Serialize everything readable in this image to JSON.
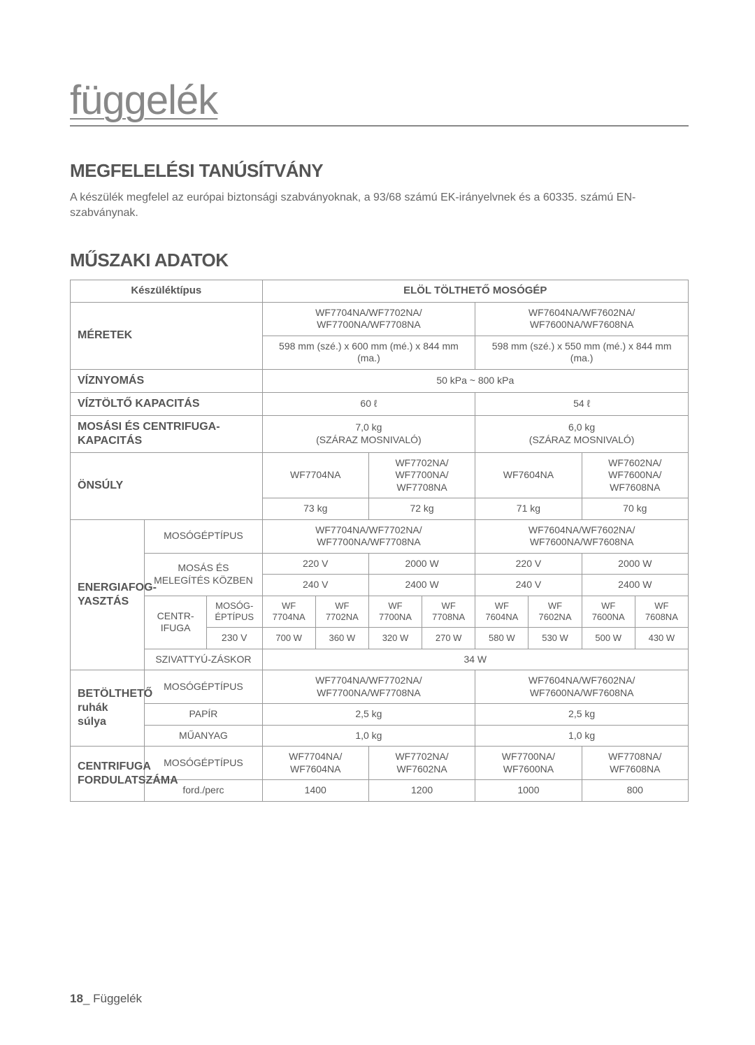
{
  "header": "függelék",
  "conformance": {
    "title": "MEGFELELÉSI TANÚSÍTVÁNY",
    "text": "A készülék megfelel az európai biztonsági szabványoknak, a 93/68 számú EK-irányelvnek és a 60335. számú EN-szabványnak."
  },
  "tech": {
    "title": "MŰSZAKI ADATOK"
  },
  "table": {
    "device_type_label": "Készüléktípus",
    "front_loader": "ELÖL TÖLTHETŐ MOSÓGÉP",
    "dims_label": "MÉRETEK",
    "models_big_left": "WF7704NA/WF7702NA/\nWF7700NA/WF7708NA",
    "models_big_right": "WF7604NA/WF7602NA/\nWF7600NA/WF7608NA",
    "dims_left": "598 mm (szé.) x 600 mm (mé.) x 844 mm (ma.)",
    "dims_right": "598 mm (szé.) x 550 mm (mé.) x 844 mm (ma.)",
    "water_pressure_label": "VÍZNYOMÁS",
    "water_pressure_val": "50 kPa ~ 800 kPa",
    "water_fill_label": "VÍZTÖLTŐ KAPACITÁS",
    "water_fill_left": "60 ℓ",
    "water_fill_right": "54 ℓ",
    "wash_spin_cap_label": "MOSÁSI ÉS CENTRIFUGA-KAPACITÁS",
    "wash_spin_cap_left": "7,0 kg\n(SZÁRAZ MOSNIVALÓ)",
    "wash_spin_cap_right": "6,0 kg\n(SZÁRAZ MOSNIVALÓ)",
    "self_weight_label": "ÖNSÚLY",
    "sw_m1": "WF7704NA",
    "sw_m2": "WF7702NA/\nWF7700NA/\nWF7708NA",
    "sw_m3": "WF7604NA",
    "sw_m4": "WF7602NA/\nWF7600NA/\nWF7608NA",
    "sw_v1": "73 kg",
    "sw_v2": "72 kg",
    "sw_v3": "71 kg",
    "sw_v4": "70 kg",
    "energy_label": "ENERGIAFOG-YASZTÁS",
    "moso_type_label": "MOSÓGÉPTÍPUS",
    "moso_type_left": "WF7704NA/WF7702NA/\nWF7700NA/WF7708NA",
    "moso_type_right": "WF7604NA/WF7602NA/\nWF7600NA/WF7608NA",
    "wash_heat_label": "MOSÁS ÉS MELEGÍTÉS KÖZBEN",
    "wh_r1c1": "220 V",
    "wh_r1c2": "2000 W",
    "wh_r1c3": "220 V",
    "wh_r1c4": "2000 W",
    "wh_r2c1": "240 V",
    "wh_r2c2": "2400 W",
    "wh_r2c3": "240 V",
    "wh_r2c4": "2400 W",
    "centr_label": "CENTR-IFUGA",
    "moso_ep_label": "MOSÓG-ÉPTÍPUS",
    "v230_label": "230 V",
    "m_a1": "WF 7704NA",
    "m_a2": "WF 7702NA",
    "m_a3": "WF 7700NA",
    "m_a4": "WF 7708NA",
    "m_a5": "WF 7604NA",
    "m_a6": "WF 7602NA",
    "m_a7": "WF 7600NA",
    "m_a8": "WF 7608NA",
    "w1": "700 W",
    "w2": "360 W",
    "w3": "320 W",
    "w4": "270 W",
    "w5": "580 W",
    "w6": "530 W",
    "w7": "500 W",
    "w8": "430 W",
    "pump_label": "SZIVATTYÚ-ZÁSKOR",
    "pump_val": "34 W",
    "load_label": "BETÖLTHETŐ ruhák súlya",
    "paper_label": "PAPÍR",
    "paper_left": "2,5 kg",
    "paper_right": "2,5 kg",
    "plastic_label": "MŰANYAG",
    "plastic_left": "1,0 kg",
    "plastic_right": "1,0 kg",
    "centrif_label": "CENTRIFUGA FORDULATSZÁMA",
    "cf_m1": "WF7704NA/\nWF7604NA",
    "cf_m2": "WF7702NA/\nWF7602NA",
    "cf_m3": "WF7700NA/\nWF7600NA",
    "cf_m4": "WF7708NA/\nWF7608NA",
    "ford_label": "ford./perc",
    "rpm1": "1400",
    "rpm2": "1200",
    "rpm3": "1000",
    "rpm4": "800"
  },
  "footer": {
    "page": "18",
    "label": "_ Függelék"
  },
  "colors": {
    "text": "#555555",
    "muted": "#888888",
    "border": "#999999",
    "bg": "#ffffff"
  }
}
